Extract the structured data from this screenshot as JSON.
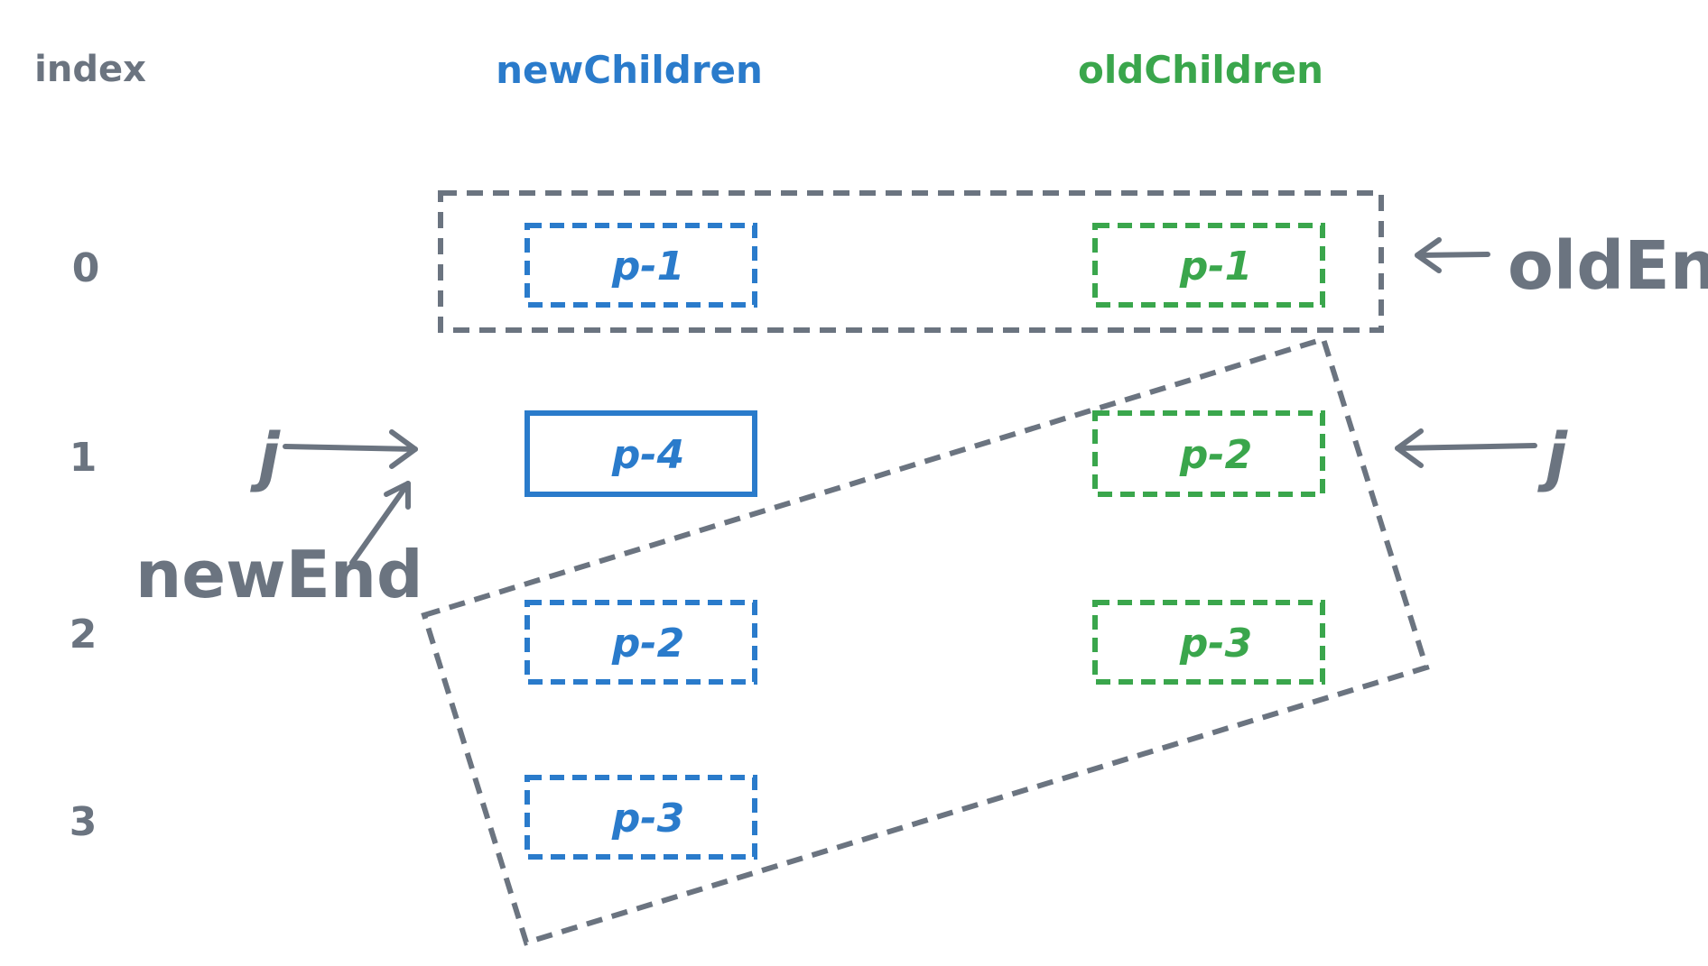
{
  "colors": {
    "gray": "#6b7480",
    "blue": "#2a7bcb",
    "green": "#3aa64c",
    "background": "#ffffff"
  },
  "headers": {
    "index": "index",
    "new_children": "newChildren",
    "old_children": "oldChildren"
  },
  "indices": [
    "0",
    "1",
    "2",
    "3"
  ],
  "new_children": [
    {
      "label": "p-1",
      "style": "dashed"
    },
    {
      "label": "p-4",
      "style": "solid"
    },
    {
      "label": "p-2",
      "style": "dashed"
    },
    {
      "label": "p-3",
      "style": "dashed"
    }
  ],
  "old_children": [
    {
      "label": "p-1",
      "style": "dashed"
    },
    {
      "label": "p-2",
      "style": "dashed"
    },
    {
      "label": "p-3",
      "style": "dashed"
    }
  ],
  "pointers": {
    "old_end": "oldEnd",
    "j_left": "j",
    "j_right": "j",
    "new_end": "newEnd"
  }
}
